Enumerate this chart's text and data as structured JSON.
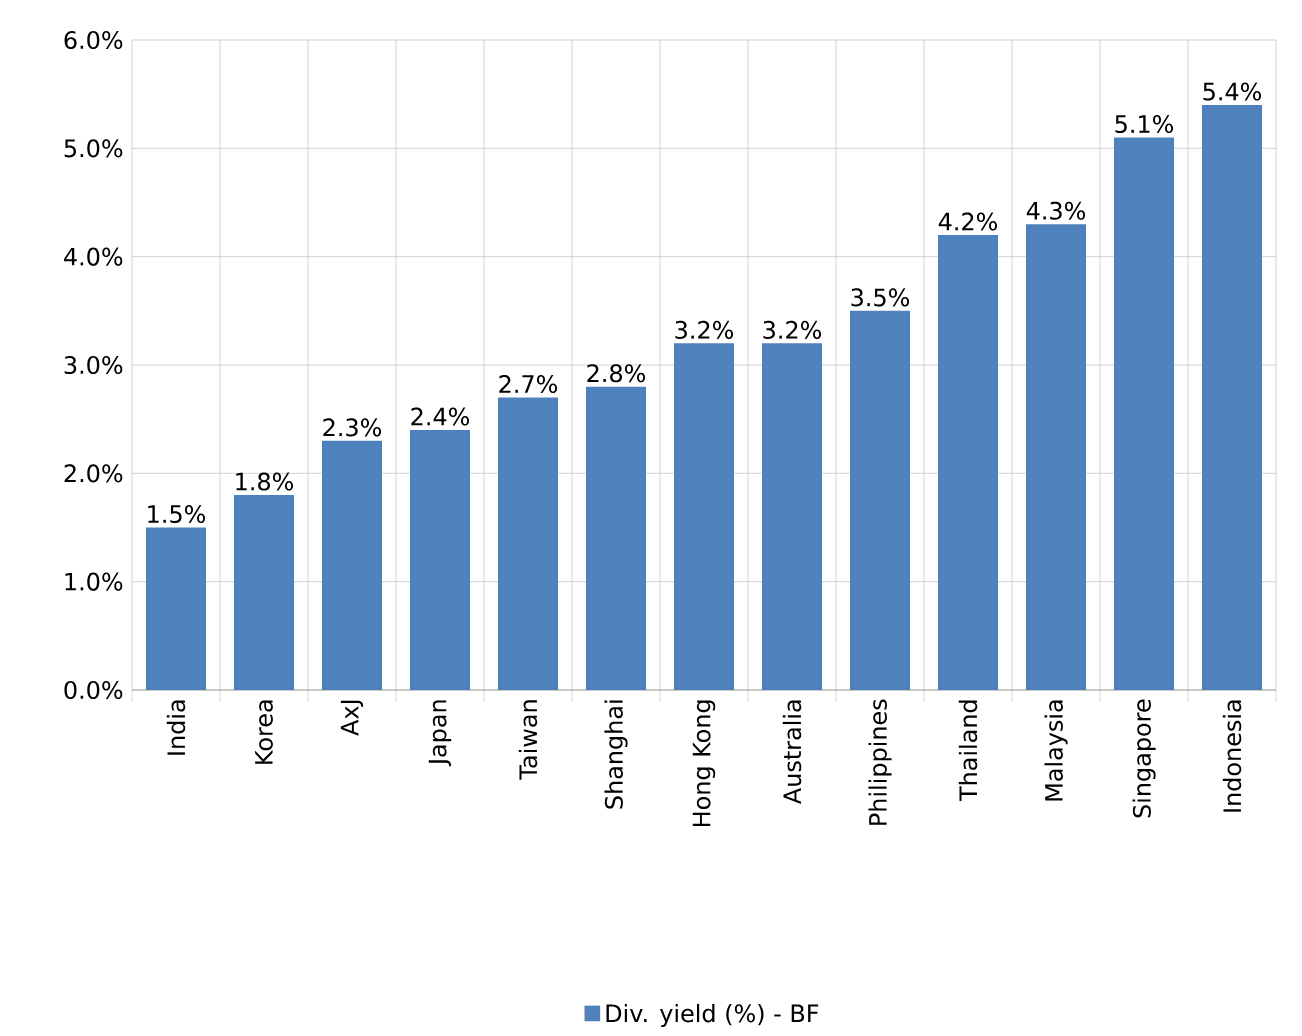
{
  "chart_data": {
    "type": "bar",
    "categories": [
      "India",
      "Korea",
      "AxJ",
      "Japan",
      "Taiwan",
      "Shanghai",
      "Hong Kong",
      "Australia",
      "Philippines",
      "Thailand",
      "Malaysia",
      "Singapore",
      "Indonesia"
    ],
    "series": [
      {
        "name": "Div. yield (%) - BF",
        "color": "#4f81bd",
        "values": [
          1.5,
          1.8,
          2.3,
          2.4,
          2.7,
          2.8,
          3.2,
          3.2,
          3.5,
          4.2,
          4.3,
          5.1,
          5.4
        ],
        "value_labels": [
          "1.5%",
          "1.8%",
          "2.3%",
          "2.4%",
          "2.7%",
          "2.8%",
          "3.2%",
          "3.2%",
          "3.5%",
          "4.2%",
          "4.3%",
          "5.1%",
          "5.4%"
        ]
      }
    ],
    "ylim": [
      0,
      6
    ],
    "yticks": [
      {
        "value": 0,
        "label": "0.0%"
      },
      {
        "value": 1,
        "label": "1.0%"
      },
      {
        "value": 2,
        "label": "2.0%"
      },
      {
        "value": 3,
        "label": "3.0%"
      },
      {
        "value": 4,
        "label": "4.0%"
      },
      {
        "value": 5,
        "label": "5.0%"
      },
      {
        "value": 6,
        "label": "6.0%"
      }
    ],
    "grid": true,
    "legend": "bottom"
  }
}
